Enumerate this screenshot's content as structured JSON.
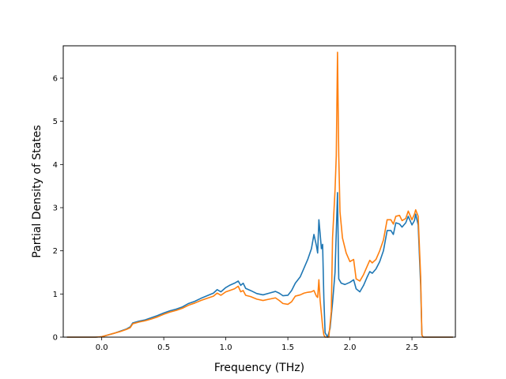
{
  "chart_data": {
    "type": "line",
    "title": "",
    "xlabel": "Frequency (THz)",
    "ylabel": "Partial Density of States",
    "xlim": [
      -0.31,
      2.85
    ],
    "ylim": [
      0,
      6.75
    ],
    "xticks": [
      0.0,
      0.5,
      1.0,
      1.5,
      2.0,
      2.5
    ],
    "xtick_labels": [
      "0.0",
      "0.5",
      "1.0",
      "1.5",
      "2.0",
      "2.5"
    ],
    "yticks": [
      0,
      1,
      2,
      3,
      4,
      5,
      6
    ],
    "ytick_labels": [
      "0",
      "1",
      "2",
      "3",
      "4",
      "5",
      "6"
    ],
    "grid": false,
    "legend": null,
    "series": [
      {
        "color": "#1f77b4",
        "points": [
          [
            -0.28,
            0
          ],
          [
            -0.05,
            0
          ],
          [
            0.0,
            0.01
          ],
          [
            0.05,
            0.05
          ],
          [
            0.1,
            0.09
          ],
          [
            0.15,
            0.14
          ],
          [
            0.2,
            0.19
          ],
          [
            0.23,
            0.24
          ],
          [
            0.25,
            0.33
          ],
          [
            0.3,
            0.37
          ],
          [
            0.35,
            0.4
          ],
          [
            0.4,
            0.45
          ],
          [
            0.45,
            0.5
          ],
          [
            0.5,
            0.56
          ],
          [
            0.55,
            0.61
          ],
          [
            0.6,
            0.65
          ],
          [
            0.65,
            0.7
          ],
          [
            0.7,
            0.78
          ],
          [
            0.75,
            0.83
          ],
          [
            0.8,
            0.9
          ],
          [
            0.85,
            0.96
          ],
          [
            0.9,
            1.02
          ],
          [
            0.93,
            1.1
          ],
          [
            0.96,
            1.05
          ],
          [
            1.0,
            1.15
          ],
          [
            1.03,
            1.2
          ],
          [
            1.07,
            1.25
          ],
          [
            1.1,
            1.3
          ],
          [
            1.12,
            1.2
          ],
          [
            1.14,
            1.25
          ],
          [
            1.16,
            1.13
          ],
          [
            1.2,
            1.08
          ],
          [
            1.25,
            1.01
          ],
          [
            1.3,
            0.98
          ],
          [
            1.35,
            1.02
          ],
          [
            1.4,
            1.06
          ],
          [
            1.43,
            1.02
          ],
          [
            1.46,
            0.96
          ],
          [
            1.5,
            0.97
          ],
          [
            1.53,
            1.08
          ],
          [
            1.56,
            1.25
          ],
          [
            1.6,
            1.4
          ],
          [
            1.63,
            1.6
          ],
          [
            1.66,
            1.8
          ],
          [
            1.69,
            2.05
          ],
          [
            1.71,
            2.38
          ],
          [
            1.73,
            2.12
          ],
          [
            1.74,
            1.95
          ],
          [
            1.75,
            2.72
          ],
          [
            1.76,
            2.4
          ],
          [
            1.77,
            2.05
          ],
          [
            1.78,
            2.15
          ],
          [
            1.79,
            0.9
          ],
          [
            1.8,
            0.1
          ],
          [
            1.82,
            0.0
          ],
          [
            1.84,
            0.2
          ],
          [
            1.86,
            0.8
          ],
          [
            1.88,
            1.5
          ],
          [
            1.9,
            3.35
          ],
          [
            1.91,
            1.35
          ],
          [
            1.93,
            1.25
          ],
          [
            1.96,
            1.22
          ],
          [
            2.0,
            1.27
          ],
          [
            2.03,
            1.33
          ],
          [
            2.05,
            1.12
          ],
          [
            2.08,
            1.05
          ],
          [
            2.11,
            1.2
          ],
          [
            2.14,
            1.4
          ],
          [
            2.16,
            1.52
          ],
          [
            2.18,
            1.48
          ],
          [
            2.21,
            1.58
          ],
          [
            2.24,
            1.75
          ],
          [
            2.27,
            2.0
          ],
          [
            2.3,
            2.47
          ],
          [
            2.33,
            2.47
          ],
          [
            2.35,
            2.38
          ],
          [
            2.37,
            2.65
          ],
          [
            2.4,
            2.62
          ],
          [
            2.42,
            2.55
          ],
          [
            2.45,
            2.65
          ],
          [
            2.47,
            2.8
          ],
          [
            2.5,
            2.6
          ],
          [
            2.52,
            2.7
          ],
          [
            2.53,
            2.85
          ],
          [
            2.55,
            2.6
          ],
          [
            2.57,
            1.2
          ],
          [
            2.58,
            0.05
          ],
          [
            2.59,
            0
          ],
          [
            2.83,
            0
          ]
        ]
      },
      {
        "color": "#ff7f0e",
        "points": [
          [
            -0.28,
            0
          ],
          [
            -0.05,
            0
          ],
          [
            0.0,
            0.01
          ],
          [
            0.05,
            0.05
          ],
          [
            0.1,
            0.09
          ],
          [
            0.15,
            0.13
          ],
          [
            0.2,
            0.18
          ],
          [
            0.23,
            0.22
          ],
          [
            0.25,
            0.31
          ],
          [
            0.3,
            0.35
          ],
          [
            0.35,
            0.38
          ],
          [
            0.4,
            0.42
          ],
          [
            0.45,
            0.47
          ],
          [
            0.5,
            0.53
          ],
          [
            0.55,
            0.58
          ],
          [
            0.6,
            0.62
          ],
          [
            0.65,
            0.67
          ],
          [
            0.7,
            0.74
          ],
          [
            0.75,
            0.79
          ],
          [
            0.8,
            0.85
          ],
          [
            0.85,
            0.9
          ],
          [
            0.9,
            0.95
          ],
          [
            0.93,
            1.02
          ],
          [
            0.96,
            0.97
          ],
          [
            1.0,
            1.05
          ],
          [
            1.03,
            1.08
          ],
          [
            1.07,
            1.12
          ],
          [
            1.1,
            1.18
          ],
          [
            1.12,
            1.05
          ],
          [
            1.14,
            1.08
          ],
          [
            1.16,
            0.97
          ],
          [
            1.2,
            0.94
          ],
          [
            1.25,
            0.88
          ],
          [
            1.3,
            0.85
          ],
          [
            1.35,
            0.88
          ],
          [
            1.4,
            0.91
          ],
          [
            1.43,
            0.85
          ],
          [
            1.46,
            0.78
          ],
          [
            1.5,
            0.76
          ],
          [
            1.53,
            0.82
          ],
          [
            1.56,
            0.95
          ],
          [
            1.6,
            0.98
          ],
          [
            1.63,
            1.02
          ],
          [
            1.66,
            1.04
          ],
          [
            1.69,
            1.05
          ],
          [
            1.71,
            1.08
          ],
          [
            1.73,
            0.95
          ],
          [
            1.74,
            0.92
          ],
          [
            1.75,
            1.33
          ],
          [
            1.76,
            0.85
          ],
          [
            1.77,
            0.55
          ],
          [
            1.78,
            0.25
          ],
          [
            1.79,
            0.05
          ],
          [
            1.8,
            0
          ],
          [
            1.83,
            0
          ],
          [
            1.85,
            0.6
          ],
          [
            1.86,
            2.3
          ],
          [
            1.88,
            3.4
          ],
          [
            1.89,
            4.2
          ],
          [
            1.9,
            6.6
          ],
          [
            1.91,
            4.2
          ],
          [
            1.92,
            2.9
          ],
          [
            1.94,
            2.3
          ],
          [
            1.97,
            1.95
          ],
          [
            2.0,
            1.75
          ],
          [
            2.03,
            1.8
          ],
          [
            2.05,
            1.35
          ],
          [
            2.08,
            1.3
          ],
          [
            2.11,
            1.45
          ],
          [
            2.14,
            1.65
          ],
          [
            2.16,
            1.78
          ],
          [
            2.18,
            1.72
          ],
          [
            2.21,
            1.8
          ],
          [
            2.24,
            2.0
          ],
          [
            2.27,
            2.25
          ],
          [
            2.3,
            2.72
          ],
          [
            2.33,
            2.72
          ],
          [
            2.35,
            2.62
          ],
          [
            2.37,
            2.8
          ],
          [
            2.4,
            2.82
          ],
          [
            2.42,
            2.7
          ],
          [
            2.45,
            2.75
          ],
          [
            2.47,
            2.92
          ],
          [
            2.5,
            2.72
          ],
          [
            2.52,
            2.85
          ],
          [
            2.53,
            2.95
          ],
          [
            2.55,
            2.8
          ],
          [
            2.57,
            1.4
          ],
          [
            2.58,
            0.05
          ],
          [
            2.59,
            0
          ],
          [
            2.83,
            0
          ]
        ]
      }
    ]
  }
}
